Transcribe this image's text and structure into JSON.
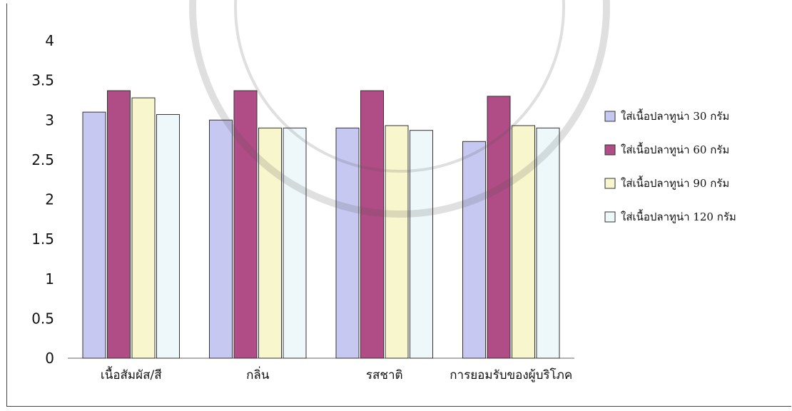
{
  "chart_data": {
    "type": "bar",
    "title": "",
    "xlabel": "",
    "ylabel": "",
    "ylim": [
      0,
      4
    ],
    "yticks": [
      "0",
      "0.5",
      "1",
      "1.5",
      "2",
      "2.5",
      "3",
      "3.5",
      "4"
    ],
    "grid": false,
    "legend_position": "right",
    "categories": [
      "เนื้อสัมผัส/สี",
      "กลิ่น",
      "รสชาติ",
      "การยอมรับของผู้บริโภค"
    ],
    "series": [
      {
        "name": "ใส่เนื้อปลาทูน่า 30 กรัม",
        "color": "#c6c8f2",
        "values": [
          3.1,
          3.0,
          2.9,
          2.73
        ]
      },
      {
        "name": "ใส่เนื้อปลาทูน่า 60 กรัม",
        "color": "#b04c86",
        "values": [
          3.37,
          3.37,
          3.37,
          3.3
        ]
      },
      {
        "name": "ใส่เนื้อปลาทูน่า 90 กรัม",
        "color": "#f8f6cc",
        "values": [
          3.28,
          2.9,
          2.93,
          2.93
        ]
      },
      {
        "name": "ใส่เนื้อปลาทูน่า 120 กรัม",
        "color": "#eef8fb",
        "values": [
          3.07,
          2.9,
          2.87,
          2.9
        ]
      }
    ]
  }
}
